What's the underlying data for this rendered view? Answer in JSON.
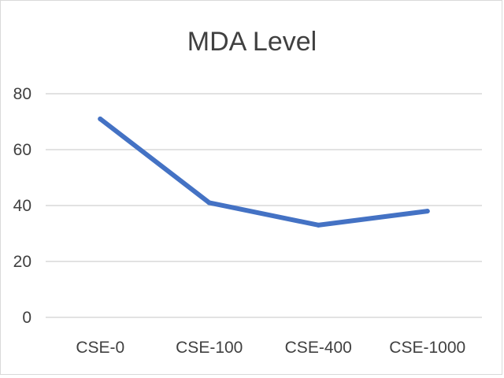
{
  "chart_data": {
    "type": "line",
    "title": "MDA Level",
    "xlabel": "",
    "ylabel": "",
    "categories": [
      "CSE-0",
      "CSE-100",
      "CSE-400",
      "CSE-1000"
    ],
    "series": [
      {
        "values": [
          71,
          41,
          33,
          38
        ]
      }
    ],
    "ylim": [
      0,
      80
    ],
    "yticks": [
      0,
      20,
      40,
      60,
      80
    ],
    "grid": true,
    "legend": "none",
    "colors": {
      "series": "#4472c4",
      "grid": "#d9d9d9",
      "text": "#404040"
    }
  }
}
